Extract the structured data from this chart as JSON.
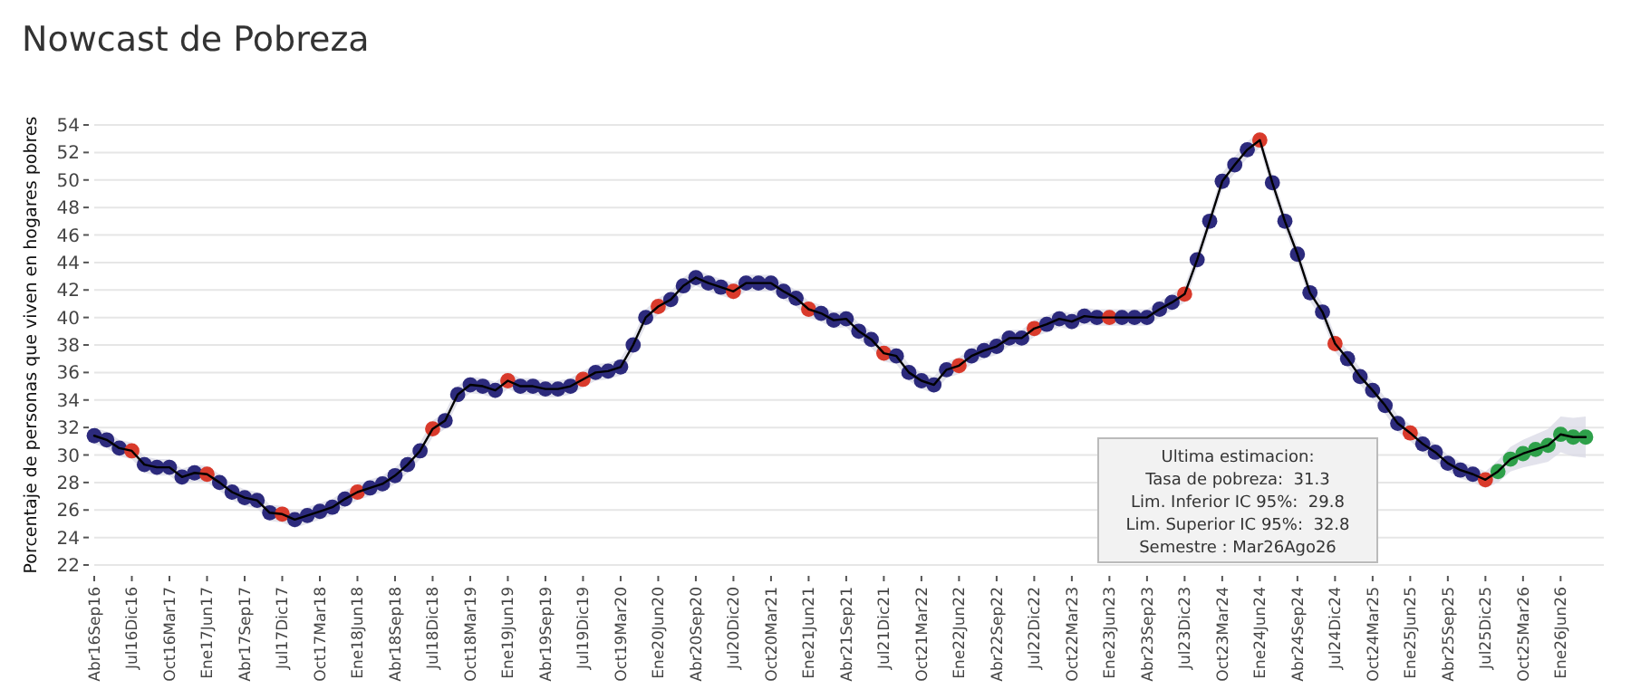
{
  "chart_data": {
    "type": "line",
    "title": "Nowcast de Pobreza",
    "ylabel": "Porcentaje de personas que viven en hogares pobres",
    "categories": [
      "Abr16Sep16",
      null,
      null,
      "Jul16Dic16",
      null,
      null,
      "Oct16Mar17",
      null,
      null,
      "Ene17Jun17",
      null,
      null,
      "Abr17Sep17",
      null,
      null,
      "Jul17Dic17",
      null,
      null,
      "Oct17Mar18",
      null,
      null,
      "Ene18Jun18",
      null,
      null,
      "Abr18Sep18",
      null,
      null,
      "Jul18Dic18",
      null,
      null,
      "Oct18Mar19",
      null,
      null,
      "Ene19Jun19",
      null,
      null,
      "Abr19Sep19",
      null,
      null,
      "Jul19Dic19",
      null,
      null,
      "Oct19Mar20",
      null,
      null,
      "Ene20Jun20",
      null,
      null,
      "Abr20Sep20",
      null,
      null,
      "Jul20Dic20",
      null,
      null,
      "Oct20Mar21",
      null,
      null,
      "Ene21Jun21",
      null,
      null,
      "Abr21Sep21",
      null,
      null,
      "Jul21Dic21",
      null,
      null,
      "Oct21Mar22",
      null,
      null,
      "Ene22Jun22",
      null,
      null,
      "Abr22Sep22",
      null,
      null,
      "Jul22Dic22",
      null,
      null,
      "Oct22Mar23",
      null,
      null,
      "Ene23Jun23",
      null,
      null,
      "Abr23Sep23",
      null,
      null,
      "Jul23Dic23",
      null,
      null,
      "Oct23Mar24",
      null,
      null,
      "Ene24Jun24",
      null,
      null,
      "Abr24Sep24",
      null,
      null,
      "Jul24Dic24",
      null,
      null,
      "Oct24Mar25",
      null,
      null,
      "Ene25Jun25",
      null,
      null,
      "Abr25Sep25",
      null,
      null,
      "Jul25Dic25",
      null,
      null,
      "Oct25Mar26",
      null,
      null,
      "Ene26Jun26",
      null,
      null
    ],
    "series": [
      {
        "color": "#000000",
        "values": [
          31.4,
          31.1,
          30.5,
          30.3,
          29.3,
          29.1,
          29.1,
          28.4,
          28.7,
          28.6,
          28.0,
          27.3,
          26.9,
          26.7,
          25.8,
          25.7,
          25.3,
          25.6,
          25.9,
          26.2,
          26.8,
          27.3,
          27.6,
          27.9,
          28.5,
          29.3,
          30.3,
          31.9,
          32.5,
          34.4,
          35.1,
          35.0,
          34.7,
          35.4,
          35.0,
          35.0,
          34.8,
          34.8,
          35.0,
          35.5,
          36.0,
          36.1,
          36.4,
          38.0,
          40.0,
          40.8,
          41.3,
          42.3,
          42.9,
          42.5,
          42.2,
          41.9,
          42.5,
          42.5,
          42.5,
          41.9,
          41.4,
          40.6,
          40.3,
          39.8,
          39.9,
          39.0,
          38.4,
          37.4,
          37.2,
          36.0,
          35.4,
          35.1,
          36.2,
          36.5,
          37.2,
          37.6,
          37.9,
          38.5,
          38.5,
          39.2,
          39.5,
          39.9,
          39.7,
          40.1,
          40.0,
          40.0,
          40.0,
          40.0,
          40.0,
          40.6,
          41.1,
          41.7,
          44.2,
          47.0,
          49.9,
          51.1,
          52.2,
          52.9,
          49.8,
          47.0,
          44.6,
          41.8,
          40.4,
          38.1,
          37.0,
          35.7,
          34.7,
          33.6,
          32.3,
          31.6,
          30.8,
          30.2,
          29.4,
          28.9,
          28.6,
          28.2,
          28.8,
          29.7,
          30.1,
          30.4,
          30.7,
          31.5,
          31.3,
          31.3
        ],
        "lower": [
          30.8,
          30.5,
          29.9,
          29.7,
          28.7,
          28.5,
          28.5,
          27.8,
          28.1,
          28.0,
          27.4,
          26.7,
          26.3,
          26.1,
          25.2,
          25.1,
          24.7,
          25.0,
          25.3,
          25.6,
          26.2,
          26.7,
          27.0,
          27.3,
          27.9,
          28.7,
          29.7,
          31.3,
          31.9,
          33.8,
          34.5,
          34.4,
          34.1,
          34.8,
          34.4,
          34.4,
          34.2,
          34.2,
          34.4,
          34.9,
          35.4,
          35.5,
          35.8,
          37.4,
          39.4,
          40.2,
          40.7,
          41.7,
          42.3,
          41.9,
          41.6,
          41.3,
          41.9,
          41.9,
          41.9,
          41.3,
          40.8,
          40.0,
          39.7,
          39.2,
          39.3,
          38.4,
          37.8,
          36.8,
          36.6,
          35.4,
          34.8,
          34.5,
          35.6,
          35.9,
          36.6,
          37.0,
          37.3,
          37.9,
          37.9,
          38.6,
          38.9,
          39.3,
          39.1,
          39.5,
          39.4,
          39.4,
          39.4,
          39.4,
          39.4,
          40.0,
          40.5,
          41.1,
          43.6,
          46.4,
          49.3,
          50.5,
          51.6,
          52.3,
          49.2,
          46.4,
          44.0,
          41.2,
          39.8,
          37.5,
          36.4,
          35.1,
          34.1,
          33.0,
          31.7,
          31.0,
          30.2,
          29.6,
          28.8,
          28.3,
          28.0,
          27.6,
          28.0,
          28.8,
          29.1,
          29.3,
          29.5,
          30.2,
          29.9,
          29.8
        ],
        "upper": [
          32.0,
          31.7,
          31.1,
          30.9,
          29.9,
          29.7,
          29.7,
          29.0,
          29.3,
          29.2,
          28.6,
          27.9,
          27.5,
          27.3,
          26.4,
          26.3,
          25.9,
          26.2,
          26.5,
          26.8,
          27.4,
          27.9,
          28.2,
          28.5,
          29.1,
          29.9,
          30.9,
          32.5,
          33.1,
          35.0,
          35.7,
          35.6,
          35.3,
          36.0,
          35.6,
          35.6,
          35.4,
          35.4,
          35.6,
          36.1,
          36.6,
          36.7,
          37.0,
          38.6,
          40.6,
          41.4,
          41.9,
          42.9,
          43.5,
          43.1,
          42.8,
          42.5,
          43.1,
          43.1,
          43.1,
          42.5,
          42.0,
          41.2,
          40.9,
          40.4,
          40.5,
          39.6,
          39.0,
          38.0,
          37.8,
          36.6,
          36.0,
          35.7,
          36.8,
          37.1,
          37.8,
          38.2,
          38.5,
          39.1,
          39.1,
          39.8,
          40.1,
          40.5,
          40.3,
          40.7,
          40.6,
          40.6,
          40.6,
          40.6,
          40.6,
          41.2,
          41.7,
          42.3,
          44.8,
          47.6,
          50.5,
          51.7,
          52.8,
          53.5,
          50.4,
          47.6,
          45.2,
          42.4,
          41.0,
          38.7,
          37.6,
          36.3,
          35.3,
          34.2,
          32.9,
          32.2,
          31.4,
          30.8,
          30.0,
          29.5,
          29.2,
          28.8,
          29.6,
          30.6,
          31.1,
          31.5,
          31.9,
          32.8,
          32.7,
          32.8
        ],
        "colors": [
          "#2c2a7c",
          "#2c2a7c",
          "#2c2a7c",
          "#d93a2b",
          "#2c2a7c",
          "#2c2a7c",
          "#2c2a7c",
          "#2c2a7c",
          "#2c2a7c",
          "#d93a2b",
          "#2c2a7c",
          "#2c2a7c",
          "#2c2a7c",
          "#2c2a7c",
          "#2c2a7c",
          "#d93a2b",
          "#2c2a7c",
          "#2c2a7c",
          "#2c2a7c",
          "#2c2a7c",
          "#2c2a7c",
          "#d93a2b",
          "#2c2a7c",
          "#2c2a7c",
          "#2c2a7c",
          "#2c2a7c",
          "#2c2a7c",
          "#d93a2b",
          "#2c2a7c",
          "#2c2a7c",
          "#2c2a7c",
          "#2c2a7c",
          "#2c2a7c",
          "#d93a2b",
          "#2c2a7c",
          "#2c2a7c",
          "#2c2a7c",
          "#2c2a7c",
          "#2c2a7c",
          "#d93a2b",
          "#2c2a7c",
          "#2c2a7c",
          "#2c2a7c",
          "#2c2a7c",
          "#2c2a7c",
          "#d93a2b",
          "#2c2a7c",
          "#2c2a7c",
          "#2c2a7c",
          "#2c2a7c",
          "#2c2a7c",
          "#d93a2b",
          "#2c2a7c",
          "#2c2a7c",
          "#2c2a7c",
          "#2c2a7c",
          "#2c2a7c",
          "#d93a2b",
          "#2c2a7c",
          "#2c2a7c",
          "#2c2a7c",
          "#2c2a7c",
          "#2c2a7c",
          "#d93a2b",
          "#2c2a7c",
          "#2c2a7c",
          "#2c2a7c",
          "#2c2a7c",
          "#2c2a7c",
          "#d93a2b",
          "#2c2a7c",
          "#2c2a7c",
          "#2c2a7c",
          "#2c2a7c",
          "#2c2a7c",
          "#d93a2b",
          "#2c2a7c",
          "#2c2a7c",
          "#2c2a7c",
          "#2c2a7c",
          "#2c2a7c",
          "#d93a2b",
          "#2c2a7c",
          "#2c2a7c",
          "#2c2a7c",
          "#2c2a7c",
          "#2c2a7c",
          "#d93a2b",
          "#2c2a7c",
          "#2c2a7c",
          "#2c2a7c",
          "#2c2a7c",
          "#2c2a7c",
          "#d93a2b",
          "#2c2a7c",
          "#2c2a7c",
          "#2c2a7c",
          "#2c2a7c",
          "#2c2a7c",
          "#d93a2b",
          "#2c2a7c",
          "#2c2a7c",
          "#2c2a7c",
          "#2c2a7c",
          "#2c2a7c",
          "#d93a2b",
          "#2c2a7c",
          "#2c2a7c",
          "#2c2a7c",
          "#2c2a7c",
          "#2c2a7c",
          "#d93a2b",
          "#2ea04a",
          "#2ea04a",
          "#2ea04a",
          "#2ea04a",
          "#2ea04a",
          "#2ea04a",
          "#2ea04a",
          "#2ea04a"
        ]
      }
    ],
    "ylim": [
      22,
      54
    ],
    "yticks": [
      22,
      24,
      26,
      28,
      30,
      32,
      34,
      36,
      38,
      40,
      42,
      44,
      46,
      48,
      50,
      52,
      54
    ],
    "grid": "y",
    "marker": "circle",
    "line_style": "solid",
    "annotations": [
      "Ultima estimacion:",
      "Tasa de pobreza:  31.3",
      "Lim. Inferior IC 95%:  29.8",
      "Lim. Superior IC 95%:  32.8",
      "Semestre : Mar26Ago26"
    ]
  }
}
